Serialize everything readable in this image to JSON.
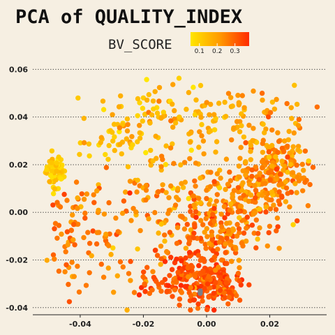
{
  "chart_data": {
    "type": "scatter",
    "title": "PCA of QUALITY_INDEX",
    "xlabel": "",
    "ylabel": "",
    "xlim": [
      -0.055,
      0.038
    ],
    "ylim": [
      -0.043,
      0.061
    ],
    "x_ticks": [
      "-0.04",
      "-0.02",
      "0.00",
      "0.02"
    ],
    "x_tick_values": [
      -0.04,
      -0.02,
      0.0,
      0.02
    ],
    "y_ticks": [
      "0.06",
      "0.04",
      "0.02",
      "0.00",
      "-0.02",
      "-0.04"
    ],
    "y_tick_values": [
      0.06,
      0.04,
      0.02,
      0.0,
      -0.02,
      -0.04
    ],
    "grid": "horizontal-dotted",
    "legend": {
      "title": "BV_SCORE",
      "placement": "top-center",
      "type": "colorbar",
      "ticks": [
        "0.1",
        "0.2",
        "0.3"
      ],
      "tick_values": [
        0.1,
        0.2,
        0.3
      ],
      "range": [
        0.05,
        0.38
      ],
      "colors": [
        "#ffe600",
        "#ff9a00",
        "#ff2a00"
      ]
    },
    "missing_color": "#7a7f86",
    "clusters": [
      {
        "cx": -0.048,
        "cy": 0.017,
        "sx": 0.0015,
        "sy": 0.0035,
        "n": 70,
        "value": 0.1,
        "value_spread": 0.03
      },
      {
        "cx": -0.044,
        "cy": -0.01,
        "sx": 0.003,
        "sy": 0.012,
        "n": 45,
        "value": 0.27,
        "value_spread": 0.05
      },
      {
        "cx": -0.028,
        "cy": 0.03,
        "sx": 0.006,
        "sy": 0.008,
        "n": 45,
        "value": 0.13,
        "value_spread": 0.04
      },
      {
        "cx": -0.015,
        "cy": 0.04,
        "sx": 0.007,
        "sy": 0.007,
        "n": 60,
        "value": 0.15,
        "value_spread": 0.05
      },
      {
        "cx": 0.002,
        "cy": 0.04,
        "sx": 0.008,
        "sy": 0.007,
        "n": 60,
        "value": 0.17,
        "value_spread": 0.05
      },
      {
        "cx": 0.02,
        "cy": 0.038,
        "sx": 0.007,
        "sy": 0.008,
        "n": 45,
        "value": 0.21,
        "value_spread": 0.05
      },
      {
        "cx": -0.02,
        "cy": 0.005,
        "sx": 0.009,
        "sy": 0.012,
        "n": 70,
        "value": 0.22,
        "value_spread": 0.06
      },
      {
        "cx": -0.033,
        "cy": -0.008,
        "sx": 0.005,
        "sy": 0.009,
        "n": 30,
        "value": 0.25,
        "value_spread": 0.05
      },
      {
        "cx": -0.005,
        "cy": 0.012,
        "sx": 0.007,
        "sy": 0.01,
        "n": 55,
        "value": 0.21,
        "value_spread": 0.05
      },
      {
        "cx": 0.022,
        "cy": 0.018,
        "sx": 0.005,
        "sy": 0.007,
        "n": 160,
        "value": 0.23,
        "value_spread": 0.05
      },
      {
        "cx": 0.013,
        "cy": 0.005,
        "sx": 0.006,
        "sy": 0.008,
        "n": 130,
        "value": 0.24,
        "value_spread": 0.05
      },
      {
        "cx": 0.004,
        "cy": -0.01,
        "sx": 0.007,
        "sy": 0.007,
        "n": 130,
        "value": 0.26,
        "value_spread": 0.05
      },
      {
        "cx": -0.006,
        "cy": -0.027,
        "sx": 0.006,
        "sy": 0.005,
        "n": 150,
        "value": 0.32,
        "value_spread": 0.04
      },
      {
        "cx": 0.003,
        "cy": -0.03,
        "sx": 0.005,
        "sy": 0.005,
        "n": 110,
        "value": 0.31,
        "value_spread": 0.04
      },
      {
        "cx": -0.025,
        "cy": -0.028,
        "sx": 0.006,
        "sy": 0.005,
        "n": 20,
        "value": 0.27,
        "value_spread": 0.05
      }
    ],
    "missing_points": [
      [
        -0.002,
        -0.033
      ],
      [
        -0.002,
        -0.034
      ]
    ]
  }
}
